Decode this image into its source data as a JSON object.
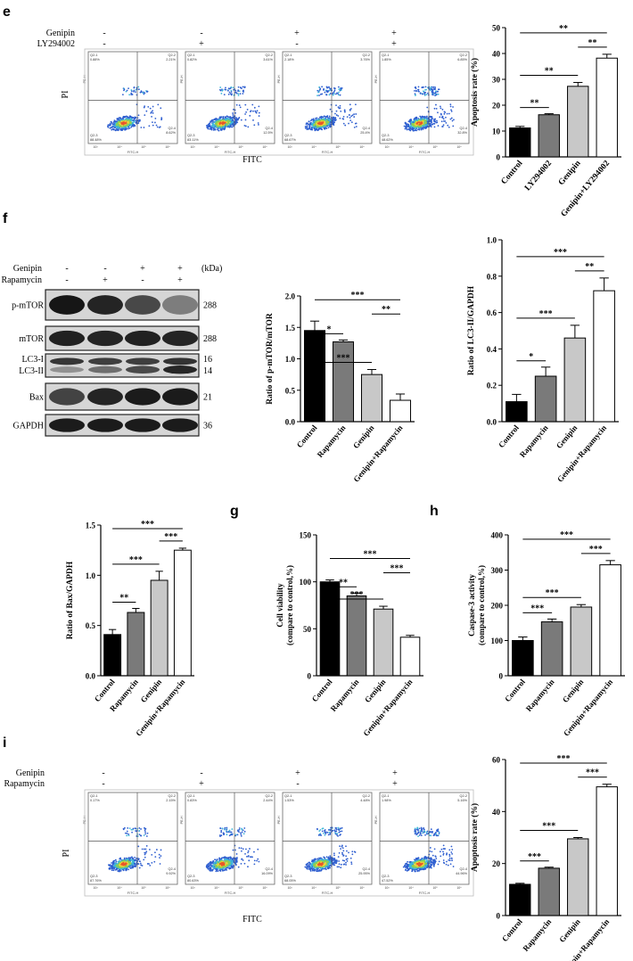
{
  "panels": {
    "e": {
      "letter": "e",
      "treatments": [
        {
          "name": "Genipin",
          "signs": [
            "-",
            "-",
            "+",
            "+"
          ]
        },
        {
          "name": "LY294002",
          "signs": [
            "-",
            "+",
            "-",
            "+"
          ]
        }
      ],
      "flow": {
        "xlabel": "FITC",
        "ylabel": "PI",
        "plots": [
          {
            "q1": "Q2-1\n0.88%",
            "q2": "Q2-2\n2.21%",
            "q3": "Q2-3\n88.48%",
            "q4": "Q2-4\n8.62%"
          },
          {
            "q1": "Q2-1\n0.82%",
            "q2": "Q2-2\n3.61%",
            "q3": "Q2-3\n83.11%",
            "q4": "Q2-4\n12.5%"
          },
          {
            "q1": "Q2-1\n2.18%",
            "q2": "Q2-2\n3.76%",
            "q3": "Q2-3\n68.67%",
            "q4": "Q2-4\n25.4%"
          },
          {
            "q1": "Q2-1\n1.85%",
            "q2": "Q2-2\n6.85%",
            "q3": "Q2-3\n48.62%",
            "q4": "Q2-4\n32.8%"
          }
        ]
      }
    },
    "f": {
      "letter": "f",
      "treatments": [
        {
          "name": "Genipin",
          "signs": [
            "-",
            "-",
            "+",
            "+"
          ]
        },
        {
          "name": "Rapamycin",
          "signs": [
            "-",
            "+",
            "-",
            "+"
          ]
        }
      ],
      "kda_label": "(kDa)",
      "blots": [
        {
          "label": "p-mTOR",
          "kda": "288"
        },
        {
          "label": "mTOR",
          "kda": "288"
        },
        {
          "label": "LC3-I",
          "kda": "16",
          "label2": "LC3-II",
          "kda2": "14"
        },
        {
          "label": "Bax",
          "kda": "21"
        },
        {
          "label": "GAPDH",
          "kda": "36"
        }
      ]
    },
    "g": {
      "letter": "g"
    },
    "h": {
      "letter": "h"
    },
    "i": {
      "letter": "i",
      "treatments": [
        {
          "name": "Genipin",
          "signs": [
            "-",
            "-",
            "+",
            "+"
          ]
        },
        {
          "name": "Rapamycin",
          "signs": [
            "-",
            "+",
            "-",
            "+"
          ]
        }
      ],
      "flow": {
        "xlabel": "FITC",
        "ylabel": "PI",
        "plots": [
          {
            "q1": "Q2-1\n0.17%",
            "q2": "Q2-2\n2.15%",
            "q3": "Q2-3\n87.76%",
            "q4": "Q2-4\n9.92%"
          },
          {
            "q1": "Q2-1\n0.83%",
            "q2": "Q2-2\n2.44%",
            "q3": "Q2-3\n80.63%",
            "q4": "Q2-4\n16.09%"
          },
          {
            "q1": "Q2-1\n1.53%",
            "q2": "Q2-2\n4.48%",
            "q3": "Q2-3\n68.05%",
            "q4": "Q2-4\n25.95%"
          },
          {
            "q1": "Q2-1\n1.98%",
            "q2": "Q2-2\n5.16%",
            "q3": "Q2-3\n47.52%",
            "q4": "Q2-4\n44.96%"
          }
        ]
      }
    }
  },
  "chart_data": [
    {
      "id": "e",
      "type": "bar",
      "categories": [
        "Control",
        "LY294002",
        "Genipin",
        "Genipin+LY294002"
      ],
      "values": [
        11.2,
        16.3,
        27.3,
        38.2
      ],
      "errors": [
        0.6,
        0.4,
        1.5,
        1.5
      ],
      "colors": [
        "#000000",
        "#7a7a7a",
        "#c8c8c8",
        "#ffffff"
      ],
      "ylabel": "Apoptosis rate (%)",
      "ylim": [
        0,
        50
      ],
      "yticks": [
        0,
        10,
        20,
        30,
        40,
        50
      ],
      "significance": [
        {
          "from": 0,
          "to": 1,
          "label": "**"
        },
        {
          "from": 0,
          "to": 2,
          "label": "**"
        },
        {
          "from": 0,
          "to": 3,
          "label": "**"
        },
        {
          "from": 2,
          "to": 3,
          "label": "**"
        }
      ]
    },
    {
      "id": "f1",
      "type": "bar",
      "categories": [
        "Control",
        "Rapamycin",
        "Genipin",
        "Genipin+Rapamycin"
      ],
      "values": [
        1.45,
        1.27,
        0.75,
        0.34
      ],
      "errors": [
        0.15,
        0.03,
        0.08,
        0.1
      ],
      "colors": [
        "#000000",
        "#7a7a7a",
        "#c8c8c8",
        "#ffffff"
      ],
      "ylabel": "Ratio of p-mTOR/mTOR",
      "ylim": [
        0,
        2.0
      ],
      "yticks": [
        "0.0",
        "0.5",
        "1.0",
        "1.5",
        "2.0"
      ],
      "significance": [
        {
          "from": 0,
          "to": 1,
          "label": "*"
        },
        {
          "from": 0,
          "to": 2,
          "label": "***"
        },
        {
          "from": 0,
          "to": 3,
          "label": "***"
        },
        {
          "from": 2,
          "to": 3,
          "label": "**"
        }
      ]
    },
    {
      "id": "f2",
      "type": "bar",
      "categories": [
        "Control",
        "Rapamycin",
        "Genipin",
        "Genipin+Rapamycin"
      ],
      "values": [
        0.11,
        0.25,
        0.46,
        0.72
      ],
      "errors": [
        0.04,
        0.05,
        0.07,
        0.07
      ],
      "colors": [
        "#000000",
        "#7a7a7a",
        "#c8c8c8",
        "#ffffff"
      ],
      "ylabel": "Ratio of LC3-II/GAPDH",
      "ylim": [
        0,
        1.0
      ],
      "yticks": [
        "0.0",
        "0.2",
        "0.4",
        "0.6",
        "0.8",
        "1.0"
      ],
      "significance": [
        {
          "from": 0,
          "to": 1,
          "label": "*"
        },
        {
          "from": 0,
          "to": 2,
          "label": "***"
        },
        {
          "from": 0,
          "to": 3,
          "label": "***"
        },
        {
          "from": 2,
          "to": 3,
          "label": "**"
        }
      ]
    },
    {
      "id": "f3",
      "type": "bar",
      "categories": [
        "Control",
        "Rapamycin",
        "Genipin",
        "Genipin+Rapamycin"
      ],
      "values": [
        0.41,
        0.63,
        0.95,
        1.25
      ],
      "errors": [
        0.05,
        0.04,
        0.09,
        0.02
      ],
      "colors": [
        "#000000",
        "#7a7a7a",
        "#c8c8c8",
        "#ffffff"
      ],
      "ylabel": "Ratio of Bax/GAPDH",
      "ylim": [
        0,
        1.5
      ],
      "yticks": [
        "0.0",
        "0.5",
        "1.0",
        "1.5"
      ],
      "significance": [
        {
          "from": 0,
          "to": 1,
          "label": "**"
        },
        {
          "from": 0,
          "to": 2,
          "label": "***"
        },
        {
          "from": 0,
          "to": 3,
          "label": "***"
        },
        {
          "from": 2,
          "to": 3,
          "label": "***"
        }
      ]
    },
    {
      "id": "g",
      "type": "bar",
      "categories": [
        "Control",
        "Rapamycin",
        "Genipin",
        "Genipin+Rapamycin"
      ],
      "values": [
        100,
        85,
        71,
        41
      ],
      "errors": [
        2,
        3,
        3,
        2
      ],
      "colors": [
        "#000000",
        "#7a7a7a",
        "#c8c8c8",
        "#ffffff"
      ],
      "ylabel": "Cell viability",
      "ylabel2": "(compare to control,%)",
      "ylim": [
        0,
        150
      ],
      "yticks": [
        0,
        50,
        100,
        150
      ],
      "significance": [
        {
          "from": 0,
          "to": 1,
          "label": "**"
        },
        {
          "from": 0,
          "to": 2,
          "label": "***"
        },
        {
          "from": 0,
          "to": 3,
          "label": "***"
        },
        {
          "from": 2,
          "to": 3,
          "label": "***"
        }
      ]
    },
    {
      "id": "h",
      "type": "bar",
      "categories": [
        "Control",
        "Rapamycin",
        "Genipin",
        "Genipin+Rapamycin"
      ],
      "values": [
        100,
        153,
        195,
        315
      ],
      "errors": [
        10,
        8,
        7,
        12
      ],
      "colors": [
        "#000000",
        "#7a7a7a",
        "#c8c8c8",
        "#ffffff"
      ],
      "ylabel": "Caspase-3 activity",
      "ylabel2": "(compare to control,%)",
      "ylim": [
        0,
        400
      ],
      "yticks": [
        0,
        100,
        200,
        300,
        400
      ],
      "significance": [
        {
          "from": 0,
          "to": 1,
          "label": "***"
        },
        {
          "from": 0,
          "to": 2,
          "label": "***"
        },
        {
          "from": 0,
          "to": 3,
          "label": "***"
        },
        {
          "from": 2,
          "to": 3,
          "label": "***"
        }
      ]
    },
    {
      "id": "i",
      "type": "bar",
      "categories": [
        "Control",
        "Rapamycin",
        "Genipin",
        "Genipin+Rapamycin"
      ],
      "values": [
        12,
        18.2,
        29.5,
        49.5
      ],
      "errors": [
        0.4,
        0.4,
        0.5,
        1.0
      ],
      "colors": [
        "#000000",
        "#7a7a7a",
        "#c8c8c8",
        "#ffffff"
      ],
      "ylabel": "Apoptosis rate (%)",
      "ylim": [
        0,
        60
      ],
      "yticks": [
        0,
        20,
        40,
        60
      ],
      "significance": [
        {
          "from": 0,
          "to": 1,
          "label": "***"
        },
        {
          "from": 0,
          "to": 2,
          "label": "***"
        },
        {
          "from": 0,
          "to": 3,
          "label": "***"
        },
        {
          "from": 2,
          "to": 3,
          "label": "***"
        }
      ]
    }
  ]
}
